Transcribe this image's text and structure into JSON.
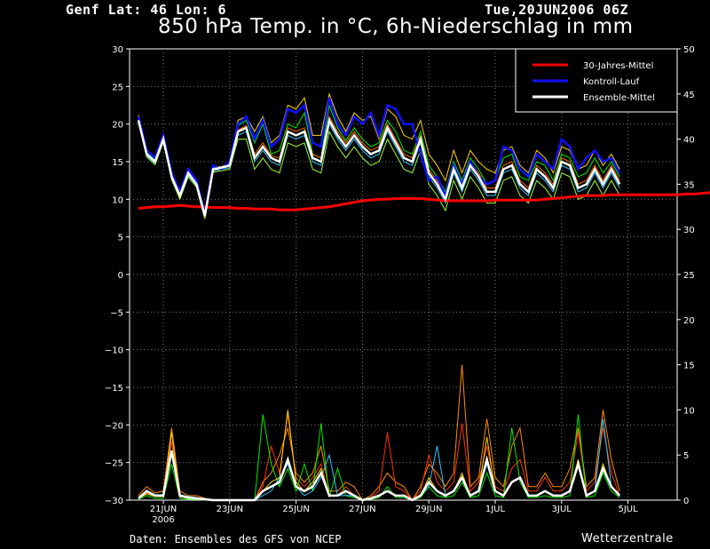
{
  "header": {
    "location": "Genf  Lat: 46 Lon: 6",
    "run": "Tue,20JUN2006 06Z",
    "title": "850 hPa Temp. in °C, 6h-Niederschlag in mm"
  },
  "footer": {
    "source": "Daten: Ensembles des GFS von NCEP",
    "brand": "Wetterzentrale"
  },
  "colors": {
    "background": "#000000",
    "climate": "#ff0000",
    "control": "#1010ff",
    "mean": "#ffffff",
    "members": [
      "#ff8c00",
      "#ff3300",
      "#00ee00",
      "#30c8ff",
      "#ffd400",
      "#a0ff30",
      "#ff6a00",
      "#33ff66"
    ]
  },
  "chart_data": {
    "type": "line",
    "x_axis": {
      "tick_labels": [
        "21JUN",
        "23JUN",
        "25JUN",
        "27JUN",
        "29JUN",
        "1JUL",
        "3JUL",
        "5JUL"
      ],
      "tick_sublabel": "2006",
      "range_days": [
        0,
        16.5
      ]
    },
    "y_left": {
      "label": "850 hPa Temp. (°C)",
      "range": [
        -30,
        30
      ],
      "ticks": [
        30,
        25,
        20,
        15,
        10,
        5,
        0,
        -5,
        -10,
        -15,
        -20,
        -25,
        -30
      ]
    },
    "y_right": {
      "label": "6h-Niederschlag (mm)",
      "range": [
        0,
        50
      ],
      "ticks": [
        50,
        45,
        40,
        35,
        30,
        25,
        20,
        15,
        10,
        5,
        0
      ]
    },
    "grid": true,
    "legend": {
      "position": "top-right",
      "entries": [
        {
          "name": "30-Jahres-Mittel",
          "color": "#ff0000"
        },
        {
          "name": "Kontroll-Lauf",
          "color": "#1010ff"
        },
        {
          "name": "Ensemble-Mittel",
          "color": "#ffffff"
        }
      ]
    },
    "temperature": {
      "step_hours": 6,
      "climate_mean": [
        8.8,
        8.9,
        9.0,
        9.0,
        9.1,
        9.2,
        9.1,
        9.0,
        9.0,
        8.9,
        8.9,
        8.9,
        8.8,
        8.8,
        8.7,
        8.7,
        8.7,
        8.6,
        8.6,
        8.6,
        8.7,
        8.8,
        8.9,
        9.0,
        9.2,
        9.4,
        9.6,
        9.8,
        9.9,
        10.0,
        10.0,
        10.1,
        10.1,
        10.1,
        10.1,
        10.0,
        9.9,
        9.8,
        9.8,
        9.8,
        9.8,
        9.8,
        9.8,
        9.9,
        9.9,
        9.9,
        9.9,
        9.9,
        9.9,
        10.0,
        10.1,
        10.2,
        10.3,
        10.4,
        10.5,
        10.5,
        10.5,
        10.6,
        10.6,
        10.6,
        10.6,
        10.6,
        10.6,
        10.6,
        10.6,
        10.6,
        10.7,
        10.7,
        10.8,
        10.9,
        11.0,
        11.1,
        11.1,
        11.1,
        11.1,
        11.1
      ],
      "control_run": [
        21.0,
        16.5,
        15.5,
        18.5,
        13.5,
        11.0,
        14.0,
        12.5,
        8.0,
        14.5,
        14.0,
        15.0,
        20.0,
        21.0,
        18.0,
        20.5,
        17.0,
        18.0,
        22.0,
        21.5,
        22.5,
        17.5,
        17.0,
        23.5,
        20.0,
        18.5,
        21.0,
        20.0,
        21.5,
        18.5,
        22.5,
        22.0,
        20.0,
        20.0,
        16.0,
        12.5,
        13.0,
        10.5,
        14.5,
        12.0,
        15.0,
        13.0,
        12.0,
        12.5,
        17.0,
        16.5,
        14.0,
        13.0,
        16.0,
        15.0,
        14.0,
        18.0,
        17.0,
        14.0,
        15.5,
        16.5,
        15.0,
        15.5,
        13.5
      ],
      "ensemble_mean": [
        20.5,
        16.0,
        15.0,
        18.0,
        13.0,
        10.5,
        13.5,
        12.0,
        7.8,
        14.0,
        14.2,
        14.5,
        19.0,
        19.5,
        15.5,
        17.0,
        15.5,
        15.0,
        19.0,
        18.5,
        19.0,
        15.5,
        15.0,
        20.5,
        18.5,
        17.0,
        18.5,
        17.0,
        16.0,
        16.5,
        19.5,
        17.5,
        15.5,
        15.0,
        18.0,
        13.5,
        12.0,
        10.0,
        14.0,
        11.5,
        14.5,
        13.0,
        11.0,
        11.0,
        14.0,
        14.5,
        12.0,
        11.0,
        14.0,
        13.0,
        11.5,
        15.0,
        14.5,
        11.5,
        12.0,
        14.0,
        12.0,
        14.0,
        12.0
      ],
      "members": [
        [
          21.0,
          16.2,
          15.2,
          18.3,
          13.2,
          10.8,
          13.8,
          12.3,
          7.9,
          14.2,
          14.1,
          14.8,
          19.8,
          20.5,
          17.5,
          20.0,
          16.0,
          16.5,
          20.0,
          19.5,
          21.5,
          16.0,
          15.5,
          22.5,
          19.5,
          17.8,
          19.5,
          18.0,
          17.0,
          17.5,
          20.5,
          19.0,
          16.5,
          16.0,
          19.0,
          14.5,
          13.0,
          11.0,
          15.0,
          12.5,
          15.5,
          14.0,
          12.0,
          12.5,
          15.5,
          16.0,
          13.0,
          12.5,
          15.0,
          14.5,
          12.5,
          16.0,
          15.5,
          13.0,
          13.5,
          15.5,
          13.5,
          15.0,
          13.0
        ],
        [
          20.8,
          15.8,
          14.8,
          17.8,
          12.8,
          10.2,
          13.2,
          11.8,
          7.6,
          13.8,
          14.0,
          14.2,
          18.5,
          19.0,
          15.0,
          16.5,
          15.0,
          14.5,
          18.5,
          18.0,
          18.5,
          15.0,
          14.5,
          20.0,
          18.0,
          16.5,
          18.0,
          16.5,
          15.5,
          16.0,
          19.0,
          17.0,
          15.0,
          14.5,
          17.5,
          13.0,
          11.5,
          9.5,
          13.5,
          11.0,
          14.0,
          12.5,
          10.5,
          10.5,
          13.5,
          14.0,
          11.5,
          10.5,
          13.5,
          12.5,
          11.0,
          14.5,
          14.0,
          11.0,
          11.5,
          13.5,
          11.5,
          13.5,
          11.5
        ],
        [
          21.2,
          16.4,
          15.4,
          18.5,
          13.4,
          11.0,
          14.0,
          12.5,
          8.0,
          14.4,
          14.3,
          14.9,
          20.5,
          21.0,
          19.0,
          21.0,
          17.5,
          18.5,
          22.5,
          22.0,
          23.5,
          18.5,
          18.5,
          24.0,
          21.0,
          19.0,
          21.5,
          20.5,
          21.0,
          18.0,
          22.0,
          21.0,
          18.5,
          18.0,
          20.5,
          16.0,
          14.5,
          12.5,
          16.5,
          13.5,
          16.5,
          15.0,
          14.0,
          13.5,
          16.5,
          17.0,
          14.5,
          13.5,
          16.5,
          15.5,
          13.5,
          17.0,
          16.5,
          14.0,
          14.5,
          16.5,
          14.5,
          16.0,
          14.0
        ],
        [
          20.2,
          15.6,
          14.6,
          17.6,
          12.6,
          10.0,
          13.0,
          11.6,
          7.4,
          13.6,
          13.8,
          14.0,
          18.0,
          18.0,
          14.0,
          15.5,
          14.0,
          13.5,
          17.5,
          17.0,
          17.5,
          14.0,
          13.5,
          19.0,
          17.0,
          15.5,
          17.0,
          15.5,
          14.5,
          15.0,
          18.0,
          16.0,
          14.0,
          13.5,
          16.5,
          12.0,
          10.5,
          8.5,
          12.5,
          10.0,
          13.0,
          11.5,
          9.5,
          9.5,
          12.5,
          13.0,
          10.5,
          9.5,
          12.5,
          11.5,
          10.0,
          13.5,
          13.0,
          10.0,
          10.5,
          12.5,
          10.5,
          12.5,
          10.5
        ],
        [
          20.6,
          16.1,
          15.1,
          18.1,
          13.1,
          10.6,
          13.6,
          12.1,
          7.8,
          14.1,
          14.2,
          14.6,
          19.2,
          19.8,
          16.0,
          17.5,
          15.8,
          15.5,
          19.5,
          19.0,
          19.5,
          16.0,
          15.5,
          21.0,
          19.0,
          17.5,
          19.0,
          17.5,
          16.5,
          17.0,
          20.0,
          18.0,
          16.0,
          15.5,
          18.5,
          14.0,
          12.5,
          10.5,
          14.5,
          12.0,
          15.0,
          13.5,
          11.5,
          11.5,
          14.5,
          15.0,
          12.5,
          11.5,
          14.5,
          13.5,
          12.0,
          15.5,
          15.0,
          12.0,
          12.5,
          14.5,
          12.5,
          14.5,
          12.5
        ]
      ]
    },
    "precipitation": {
      "step_hours": 6,
      "ensemble_mean": [
        0.2,
        1.0,
        0.5,
        0.5,
        5.5,
        0.5,
        0.3,
        0.2,
        0.1,
        0,
        0,
        0,
        0,
        0,
        0,
        1.0,
        1.5,
        2.0,
        4.5,
        1.5,
        1.0,
        1.5,
        3.0,
        0.5,
        0.5,
        1.0,
        0.5,
        0,
        0.2,
        0.5,
        1.0,
        0.5,
        0.5,
        0,
        0.5,
        2.0,
        1.0,
        0.5,
        1.0,
        2.5,
        0.5,
        1.0,
        4.5,
        1.0,
        0.5,
        2.0,
        2.5,
        0.5,
        0.5,
        1.0,
        0.5,
        0.5,
        1.0,
        4.0,
        0.5,
        1.0,
        3.5,
        1.5,
        0.5
      ],
      "members": [
        [
          0.5,
          1.5,
          0.8,
          1.0,
          8.0,
          1.0,
          0.5,
          0.5,
          0.2,
          0,
          0,
          0,
          0,
          0,
          0,
          2.0,
          3.0,
          5.0,
          8.0,
          3.0,
          2.0,
          3.0,
          6.0,
          1.0,
          1.0,
          2.0,
          1.5,
          0,
          0.5,
          1.5,
          3.0,
          2.0,
          1.5,
          0,
          1.5,
          4.0,
          3.0,
          1.5,
          3.0,
          15.0,
          1.5,
          2.5,
          9.0,
          2.5,
          1.5,
          6.0,
          8.0,
          1.5,
          1.5,
          3.0,
          1.5,
          1.5,
          3.5,
          8.0,
          1.5,
          2.5,
          10.0,
          4.5,
          1.0
        ],
        [
          0.3,
          0.8,
          0.4,
          0.4,
          6.5,
          0.4,
          0.2,
          0.1,
          0.1,
          0,
          0,
          0,
          0,
          0,
          0,
          1.5,
          6.0,
          3.0,
          9.5,
          2.5,
          1.5,
          2.5,
          4.0,
          0.5,
          0.5,
          1.5,
          0.5,
          0,
          0.3,
          1.0,
          7.5,
          1.5,
          1.0,
          0,
          1.0,
          5.0,
          2.0,
          1.0,
          2.0,
          8.5,
          1.0,
          2.0,
          6.0,
          1.5,
          1.0,
          3.5,
          4.5,
          1.0,
          1.0,
          2.5,
          1.0,
          1.0,
          2.0,
          7.5,
          1.0,
          2.0,
          8.0,
          3.0,
          0.5
        ],
        [
          0.1,
          0.5,
          0.2,
          0.2,
          4.0,
          0.2,
          0.1,
          0.1,
          0,
          0,
          0,
          0,
          0,
          0,
          0,
          9.5,
          4.0,
          1.5,
          3.5,
          1.0,
          4.0,
          1.0,
          8.5,
          0.3,
          3.5,
          0.5,
          0.3,
          0,
          0.1,
          0.3,
          1.5,
          0.3,
          0.3,
          0,
          0.3,
          1.5,
          0.5,
          0.3,
          0.5,
          2.0,
          0.3,
          0.5,
          3.0,
          0.5,
          0.3,
          8.0,
          2.0,
          0.3,
          0.3,
          0.5,
          0.3,
          0.3,
          0.5,
          9.5,
          0.3,
          0.5,
          3.0,
          1.0,
          0.3
        ],
        [
          0.2,
          1.0,
          0.6,
          0.6,
          5.0,
          0.6,
          0.4,
          0.3,
          0.1,
          0,
          0,
          0,
          0,
          0,
          0,
          0.5,
          1.0,
          2.5,
          4.0,
          1.5,
          0.5,
          1.0,
          2.5,
          5.0,
          0.5,
          0.5,
          0.5,
          0,
          0.2,
          0.5,
          1.0,
          0.5,
          0.5,
          0,
          0.5,
          1.5,
          6.0,
          0.5,
          1.0,
          2.5,
          0.5,
          1.0,
          4.0,
          1.0,
          0.5,
          2.0,
          2.5,
          0.5,
          0.5,
          1.0,
          0.5,
          0.5,
          1.0,
          4.0,
          0.5,
          1.0,
          9.0,
          1.5,
          0.5
        ],
        [
          0.2,
          0.7,
          0.4,
          0.4,
          7.5,
          0.4,
          0.2,
          0.2,
          0.1,
          0,
          0,
          0,
          0,
          0,
          0,
          1.0,
          2.0,
          2.5,
          10.0,
          2.0,
          1.0,
          2.0,
          3.5,
          0.5,
          0.5,
          1.0,
          0.5,
          0,
          0.2,
          0.5,
          1.0,
          0.5,
          0.5,
          0,
          0.5,
          2.5,
          1.0,
          0.5,
          1.0,
          3.0,
          0.5,
          1.0,
          7.0,
          1.0,
          0.5,
          2.0,
          2.5,
          0.5,
          0.5,
          1.0,
          0.5,
          0.5,
          1.0,
          4.5,
          0.5,
          1.0,
          4.0,
          1.5,
          0.5
        ]
      ]
    }
  }
}
